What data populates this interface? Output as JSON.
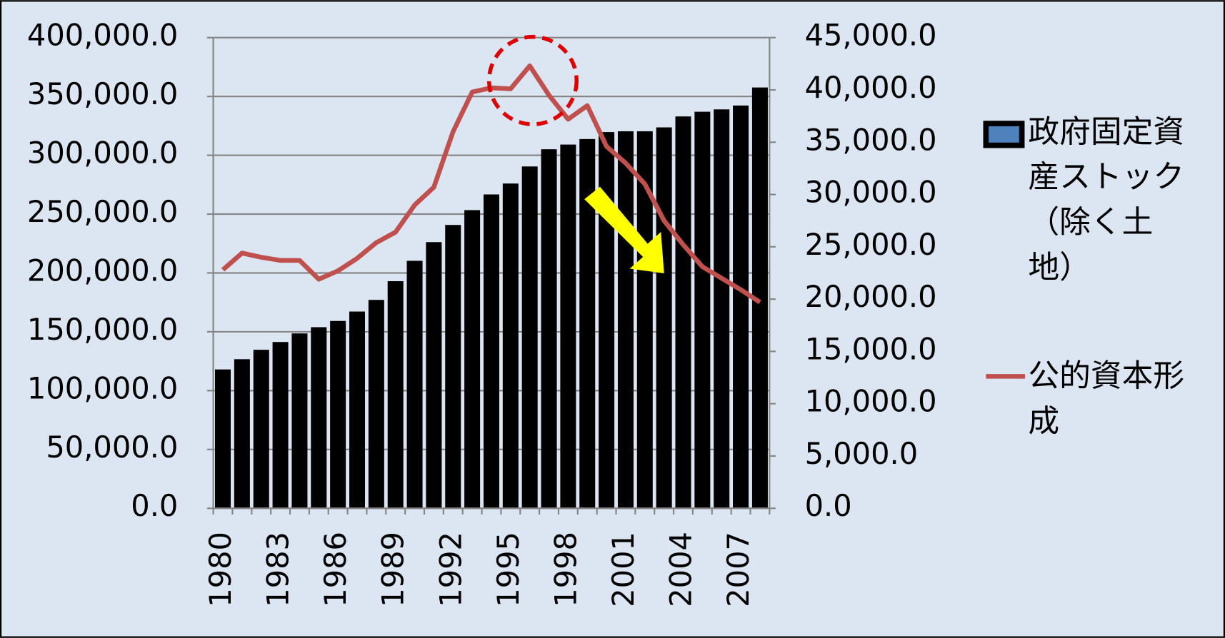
{
  "chart_data": {
    "type": "bar",
    "categories": [
      "1980",
      null,
      null,
      "1983",
      null,
      null,
      "1986",
      null,
      null,
      "1989",
      null,
      null,
      "1992",
      null,
      null,
      "1995",
      null,
      null,
      "1998",
      null,
      null,
      "2001",
      null,
      null,
      "2004",
      null,
      null,
      "2007",
      null
    ],
    "series": [
      {
        "name": "政府固定資産ストック（除く土地）",
        "color": "#000000",
        "type": "bar",
        "values": [
          118000,
          126700,
          134700,
          141300,
          148600,
          153900,
          159200,
          167200,
          177100,
          193000,
          210300,
          226200,
          240800,
          253400,
          266700,
          276000,
          290500,
          305100,
          309100,
          313800,
          319700,
          320400,
          320400,
          323700,
          333000,
          337000,
          339000,
          342300,
          357600
        ]
      },
      {
        "name": "公的資本形成",
        "color": "#c0504d",
        "type": "line",
        "axis": "y2",
        "values": [
          22800,
          24400,
          24000,
          23700,
          23700,
          21900,
          22700,
          23900,
          25400,
          26400,
          29000,
          30700,
          36000,
          39800,
          40200,
          40100,
          42300,
          39500,
          37200,
          38500,
          34600,
          33000,
          31000,
          27500,
          25200,
          23100,
          22000,
          20900,
          19700
        ]
      }
    ],
    "ylim": [
      0,
      400000
    ],
    "yticks": [
      {
        "value": 0,
        "label": "0.0"
      },
      {
        "value": 50000,
        "label": "50,000.0"
      },
      {
        "value": 100000,
        "label": "100,000.0"
      },
      {
        "value": 150000,
        "label": "150,000.0"
      },
      {
        "value": 200000,
        "label": "200,000.0"
      },
      {
        "value": 250000,
        "label": "250,000.0"
      },
      {
        "value": 300000,
        "label": "300,000.0"
      },
      {
        "value": 350000,
        "label": "350,000.0"
      },
      {
        "value": 400000,
        "label": "400,000.0"
      }
    ],
    "y2lim": [
      0,
      45000
    ],
    "y2ticks": [
      {
        "value": 0,
        "label": "0.0"
      },
      {
        "value": 5000,
        "label": "5,000.0"
      },
      {
        "value": 10000,
        "label": "10,000.0"
      },
      {
        "value": 15000,
        "label": "15,000.0"
      },
      {
        "value": 20000,
        "label": "20,000.0"
      },
      {
        "value": 25000,
        "label": "25,000.0"
      },
      {
        "value": 30000,
        "label": "30,000.0"
      },
      {
        "value": 35000,
        "label": "35,000.0"
      },
      {
        "value": 40000,
        "label": "40,000.0"
      },
      {
        "value": 45000,
        "label": "45,000.0"
      }
    ],
    "grid": true,
    "legend": "right"
  }
}
